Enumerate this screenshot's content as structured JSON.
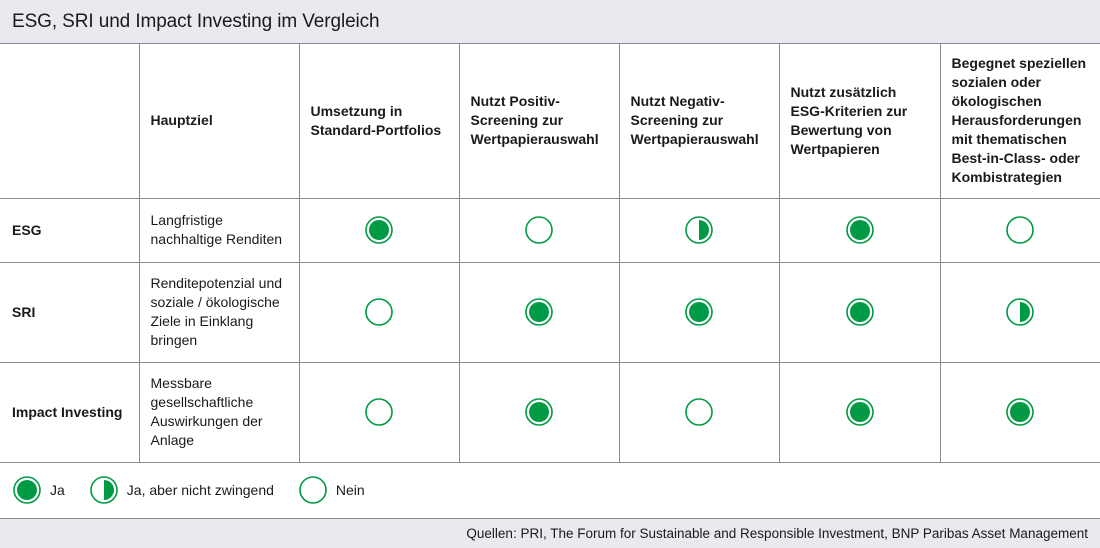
{
  "title": "ESG, SRI und Impact Investing im Vergleich",
  "columns": [
    "",
    "Hauptziel",
    "Umsetzung in Standard-Portfolios",
    "Nutzt Positiv-Screening zur Wertpapierauswahl",
    "Nutzt Negativ-Screening zur Wertpapierauswahl",
    "Nutzt zusätzlich ESG-Kriterien zur Bewertung von Wertpapieren",
    "Begegnet speziellen sozialen oder ökologischen Herausforderungen mit thematischen Best-in-Class- oder Kombistrategien"
  ],
  "rows": [
    {
      "label": "ESG",
      "goal": "Langfristige nachhaltige Renditen",
      "values": [
        "full",
        "empty",
        "half",
        "full",
        "empty"
      ]
    },
    {
      "label": "SRI",
      "goal": "Renditepotenzial und soziale / ökologische Ziele in Einklang bringen",
      "values": [
        "empty",
        "full",
        "full",
        "full",
        "half"
      ]
    },
    {
      "label": "Impact Investing",
      "goal": "Messbare gesellschaftliche Auswirkungen der Anlage",
      "values": [
        "empty",
        "full",
        "empty",
        "full",
        "full"
      ]
    }
  ],
  "legend": {
    "yes": "Ja",
    "partial": "Ja, aber nicht zwingend",
    "no": "Nein"
  },
  "source": "Quellen: PRI, The Forum for Sustainable and Responsible Investment, BNP Paribas Asset Management",
  "colors": {
    "accent": "#009a44",
    "border": "#8a8a8a",
    "band": "#e9eaf0"
  }
}
